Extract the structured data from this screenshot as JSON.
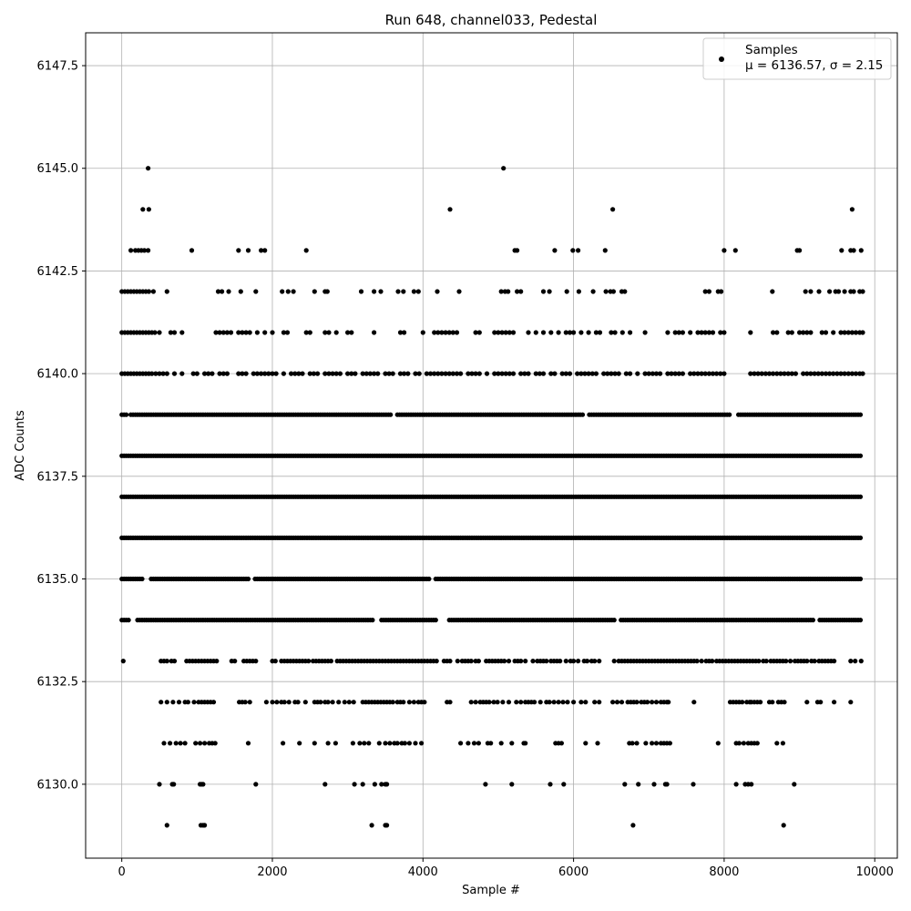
{
  "chart_data": {
    "type": "scatter",
    "title": "Run 648, channel033, Pedestal",
    "xlabel": "Sample #",
    "ylabel": "ADC Counts",
    "xlim": [
      -480,
      10300
    ],
    "ylim": [
      6128.2,
      6148.3
    ],
    "xticks": [
      0,
      2000,
      4000,
      6000,
      8000,
      10000
    ],
    "yticks": [
      6130.0,
      6132.5,
      6135.0,
      6137.5,
      6140.0,
      6142.5,
      6145.0,
      6147.5
    ],
    "grid": true,
    "marker_color": "#000000",
    "legend": {
      "placement": "top-right",
      "series_label": "Samples",
      "stats_label": "μ = 6136.57, σ = 2.15"
    },
    "series": [
      {
        "name": "Samples",
        "n": 9830,
        "mean": 6136.57,
        "std": 2.15,
        "levels": [
          {
            "y": 6145,
            "x": [
              350,
              5070
            ]
          },
          {
            "y": 6144,
            "x": [
              280,
              360,
              4360,
              6520,
              9700
            ]
          },
          {
            "y": 6143,
            "x": [
              120,
              180,
              220,
              260,
              300,
              350,
              930,
              1550,
              1680,
              1850,
              1900,
              2450,
              5220,
              5250,
              5750,
              5990,
              6060,
              6420,
              8000,
              8150,
              8970,
              9000,
              9560,
              9680,
              9720,
              9820
            ]
          },
          {
            "y": 6142,
            "x": [
              0,
              40,
              80,
              120,
              160,
              200,
              240,
              280,
              320,
              360,
              420,
              600,
              1280,
              1330,
              1420,
              1580,
              1780,
              2130,
              2210,
              2280,
              2560,
              2700,
              2730,
              3180,
              3350,
              3440,
              3670,
              3740,
              3880,
              3940,
              4190,
              4480,
              5040,
              5090,
              5130,
              5250,
              5300,
              5600,
              5680,
              5910,
              6070,
              6260,
              6430,
              6490,
              6530,
              6640,
              6680,
              7750,
              7800,
              7920,
              7960,
              8640,
              9080,
              9150,
              9260,
              9400,
              9480,
              9520,
              9600,
              9680,
              9720,
              9800,
              9840
            ]
          },
          {
            "y": 6141,
            "x": [
              0,
              40,
              80,
              120,
              160,
              200,
              240,
              280,
              320,
              360,
              400,
              440,
              500,
              650,
              700,
              800,
              1250,
              1300,
              1350,
              1400,
              1450,
              1550,
              1600,
              1650,
              1700,
              1800,
              1900,
              2000,
              2150,
              2200,
              2450,
              2500,
              2700,
              2750,
              2850,
              3000,
              3050,
              3350,
              3700,
              3750,
              4000,
              4150,
              4200,
              4250,
              4300,
              4350,
              4400,
              4450,
              4700,
              4750,
              4950,
              5000,
              5050,
              5100,
              5150,
              5200,
              5400,
              5500,
              5600,
              5700,
              5800,
              5900,
              5950,
              6000,
              6100,
              6200,
              6300,
              6350,
              6500,
              6550,
              6650,
              6750,
              6950,
              7250,
              7350,
              7400,
              7450,
              7550,
              7650,
              7700,
              7750,
              7800,
              7850,
              7950,
              8000,
              8350,
              8650,
              8700,
              8850,
              8900,
              9000,
              9050,
              9100,
              9150,
              9300,
              9350,
              9450,
              9550,
              9600,
              9650,
              9700,
              9750,
              9800,
              9840
            ]
          },
          {
            "y": 6140,
            "x": [
              0,
              40,
              80,
              120,
              160,
              200,
              240,
              280,
              320,
              360,
              400,
              450,
              500,
              550,
              600,
              700,
              800,
              950,
              1000,
              1100,
              1150,
              1200,
              1300,
              1350,
              1400,
              1550,
              1600,
              1650,
              1750,
              1800,
              1850,
              1900,
              1950,
              2000,
              2050,
              2150,
              2250,
              2300,
              2350,
              2400,
              2500,
              2550,
              2600,
              2700,
              2750,
              2800,
              2850,
              2900,
              3000,
              3050,
              3100,
              3200,
              3250,
              3300,
              3350,
              3400,
              3500,
              3550,
              3600,
              3700,
              3750,
              3800,
              3900,
              3950,
              4050,
              4100,
              4150,
              4200,
              4250,
              4300,
              4350,
              4400,
              4450,
              4500,
              4600,
              4650,
              4700,
              4750,
              4850,
              4950,
              5000,
              5050,
              5100,
              5150,
              5200,
              5300,
              5350,
              5400,
              5500,
              5550,
              5600,
              5700,
              5750,
              5850,
              5900,
              5950,
              6050,
              6100,
              6150,
              6200,
              6250,
              6300,
              6400,
              6450,
              6500,
              6550,
              6600,
              6700,
              6750,
              6850,
              6950,
              7000,
              7050,
              7100,
              7150,
              7250,
              7300,
              7350,
              7400,
              7450,
              7550,
              7600,
              7650,
              7700,
              7750,
              7800,
              7850,
              7900,
              7950,
              8000,
              8350,
              8400,
              8450,
              8500,
              8550,
              8600,
              8650,
              8700,
              8750,
              8800,
              8850,
              8900,
              8950,
              9050,
              9100,
              9150,
              9200,
              9250,
              9300,
              9350,
              9400,
              9450,
              9500,
              9550,
              9600,
              9650,
              9700,
              9750,
              9800,
              9840
            ]
          }
        ],
        "dense_levels": [
          6134,
          6135,
          6136,
          6137,
          6138,
          6139
        ],
        "dense_gaps": [
          {
            "y": 6134,
            "x": [
              [
                100,
                180
              ],
              [
                3350,
                3420
              ],
              [
                4200,
                4340
              ],
              [
                6550,
                6620
              ],
              [
                9200,
                9260
              ]
            ]
          },
          {
            "y": 6135,
            "x": [
              [
                300,
                380
              ],
              [
                1700,
                1760
              ],
              [
                4100,
                4150
              ]
            ]
          },
          {
            "y": 6139,
            "x": [
              [
                80,
                100
              ],
              [
                3600,
                3650
              ],
              [
                6150,
                6200
              ],
              [
                8100,
                8160
              ]
            ]
          }
        ],
        "low_levels": [
          {
            "y": 6133,
            "x": [
              20,
              520,
              560,
              600,
              660,
              700,
              860,
              900,
              940,
              980,
              1020,
              1060,
              1100,
              1140,
              1180,
              1220,
              1260,
              1460,
              1500,
              1620,
              1660,
              1700,
              1740,
              1780,
              2000,
              2040,
              2120,
              2160,
              2200,
              2240,
              2280,
              2320,
              2360,
              2400,
              2440,
              2480,
              2540,
              2580,
              2620,
              2660,
              2700,
              2740,
              2780,
              2860,
              2900,
              2940,
              2980,
              3020,
              3060,
              3100,
              3140,
              3180,
              3220,
              3260,
              3300,
              3340,
              3380,
              3420,
              3460,
              3500,
              3540,
              3580,
              3620,
              3660,
              3700,
              3740,
              3780,
              3820,
              3860,
              3900,
              3940,
              3980,
              4020,
              4060,
              4100,
              4140,
              4180,
              4280,
              4320,
              4360,
              4460,
              4520,
              4560,
              4600,
              4640,
              4700,
              4740,
              4840,
              4880,
              4920,
              4960,
              5000,
              5040,
              5080,
              5140,
              5220,
              5260,
              5300,
              5360,
              5460,
              5520,
              5560,
              5600,
              5640,
              5700,
              5740,
              5780,
              5820,
              5900,
              5960,
              6000,
              6060,
              6140,
              6180,
              6240,
              6280,
              6340,
              6540,
              6600,
              6640,
              6680,
              6720,
              6760,
              6800,
              6840,
              6880,
              6920,
              6960,
              7000,
              7040,
              7080,
              7120,
              7160,
              7200,
              7240,
              7280,
              7320,
              7360,
              7400,
              7440,
              7480,
              7520,
              7560,
              7600,
              7640,
              7700,
              7760,
              7800,
              7840,
              7900,
              7940,
              7980,
              8020,
              8060,
              8100,
              8140,
              8180,
              8220,
              8260,
              8300,
              8340,
              8380,
              8420,
              8460,
              8520,
              8560,
              8620,
              8660,
              8700,
              8740,
              8780,
              8820,
              8880,
              8940,
              8980,
              9020,
              9060,
              9100,
              9160,
              9200,
              9260,
              9300,
              9340,
              9380,
              9420,
              9460,
              9680,
              9740,
              9820
            ]
          },
          {
            "y": 6132,
            "x": [
              520,
              600,
              680,
              760,
              840,
              880,
              960,
              1020,
              1060,
              1100,
              1140,
              1180,
              1220,
              1560,
              1600,
              1640,
              1700,
              1920,
              2000,
              2060,
              2120,
              2160,
              2220,
              2300,
              2340,
              2440,
              2560,
              2600,
              2640,
              2700,
              2740,
              2800,
              2880,
              2960,
              3020,
              3080,
              3200,
              3240,
              3280,
              3320,
              3360,
              3400,
              3440,
              3480,
              3520,
              3560,
              3600,
              3660,
              3700,
              3740,
              3820,
              3880,
              3940,
              3980,
              4020,
              4320,
              4360,
              4640,
              4700,
              4760,
              4800,
              4840,
              4880,
              4940,
              4990,
              5060,
              5140,
              5240,
              5300,
              5360,
              5400,
              5440,
              5480,
              5560,
              5640,
              5680,
              5740,
              5800,
              5860,
              5920,
              6000,
              6100,
              6160,
              6280,
              6340,
              6520,
              6580,
              6640,
              6720,
              6760,
              6800,
              6840,
              6900,
              6940,
              6980,
              7040,
              7100,
              7160,
              7200,
              7240,
              7260,
              7600,
              8080,
              8120,
              8160,
              8200,
              8240,
              8300,
              8340,
              8360,
              8400,
              8440,
              8480,
              8600,
              8640,
              8720,
              8760,
              8800,
              9100,
              9240,
              9280,
              9460,
              9680
            ]
          },
          {
            "y": 6131,
            "x": [
              560,
              640,
              720,
              780,
              840,
              980,
              1040,
              1100,
              1160,
              1200,
              1240,
              1680,
              2140,
              2360,
              2560,
              2740,
              2840,
              3070,
              3160,
              3220,
              3280,
              3420,
              3500,
              3560,
              3620,
              3660,
              3720,
              3760,
              3820,
              3900,
              3980,
              4500,
              4600,
              4680,
              4740,
              4860,
              4900,
              5040,
              5180,
              5340,
              5360,
              5760,
              5800,
              5840,
              6160,
              6320,
              6740,
              6780,
              6840,
              6960,
              7040,
              7100,
              7160,
              7200,
              7240,
              7280,
              7920,
              8160,
              8200,
              8260,
              8320,
              8360,
              8400,
              8440,
              8700,
              8780
            ]
          },
          {
            "y": 6130,
            "x": [
              500,
              670,
              690,
              1040,
              1060,
              1080,
              1780,
              2700,
              3090,
              3200,
              3360,
              3450,
              3500,
              3520,
              4830,
              5180,
              5690,
              5870,
              6680,
              6860,
              7070,
              7220,
              7240,
              7590,
              8160,
              8280,
              8320,
              8360,
              8930
            ]
          },
          {
            "y": 6129,
            "x": [
              600,
              1050,
              1080,
              1100,
              3320,
              3500,
              3520,
              6790,
              8790
            ]
          }
        ]
      }
    ]
  }
}
